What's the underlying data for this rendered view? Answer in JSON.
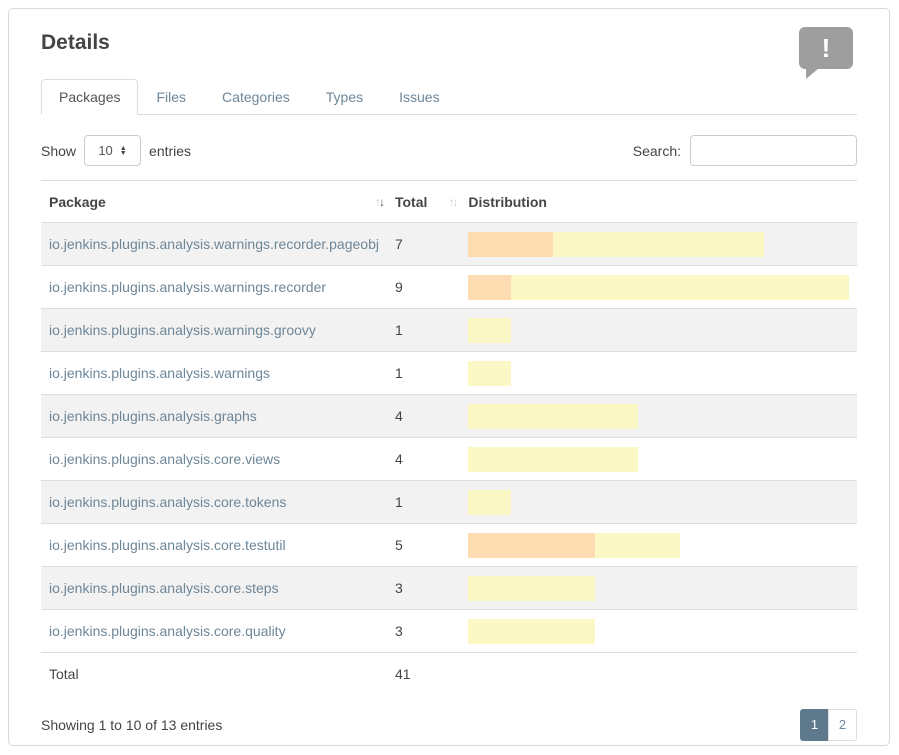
{
  "header": {
    "title": "Details",
    "icon": "speech-bubble-exclamation",
    "icon_glyph": "!"
  },
  "tabs": {
    "items": [
      {
        "label": "Packages",
        "active": true
      },
      {
        "label": "Files",
        "active": false
      },
      {
        "label": "Categories",
        "active": false
      },
      {
        "label": "Types",
        "active": false
      },
      {
        "label": "Issues",
        "active": false
      }
    ]
  },
  "controls": {
    "show_label": "Show",
    "length_value": "10",
    "entries_label": "entries",
    "search_label": "Search:",
    "search_value": ""
  },
  "table": {
    "columns": [
      {
        "label": "Package",
        "sortable": true,
        "sorted": true
      },
      {
        "label": "Total",
        "sortable": true,
        "sorted": false
      },
      {
        "label": "Distribution",
        "sortable": false,
        "sorted": false
      }
    ],
    "max_total": 9,
    "rows": [
      {
        "package": "io.jenkins.plugins.analysis.warnings.recorder.pageobj",
        "total": 7,
        "high": 2,
        "normal": 5
      },
      {
        "package": "io.jenkins.plugins.analysis.warnings.recorder",
        "total": 9,
        "high": 1,
        "normal": 8
      },
      {
        "package": "io.jenkins.plugins.analysis.warnings.groovy",
        "total": 1,
        "high": 0,
        "normal": 1
      },
      {
        "package": "io.jenkins.plugins.analysis.warnings",
        "total": 1,
        "high": 0,
        "normal": 1
      },
      {
        "package": "io.jenkins.plugins.analysis.graphs",
        "total": 4,
        "high": 0,
        "normal": 4
      },
      {
        "package": "io.jenkins.plugins.analysis.core.views",
        "total": 4,
        "high": 0,
        "normal": 4
      },
      {
        "package": "io.jenkins.plugins.analysis.core.tokens",
        "total": 1,
        "high": 0,
        "normal": 1
      },
      {
        "package": "io.jenkins.plugins.analysis.core.testutil",
        "total": 5,
        "high": 3,
        "normal": 2
      },
      {
        "package": "io.jenkins.plugins.analysis.core.steps",
        "total": 3,
        "high": 0,
        "normal": 3
      },
      {
        "package": "io.jenkins.plugins.analysis.core.quality",
        "total": 3,
        "high": 0,
        "normal": 3
      }
    ],
    "footer_row": {
      "label": "Total",
      "total": "41"
    }
  },
  "pagination": {
    "info": "Showing 1 to 10 of 13 entries",
    "pages": [
      {
        "label": "1",
        "active": true
      },
      {
        "label": "2",
        "active": false
      }
    ]
  },
  "colors": {
    "bar_high": "#fcdcb0",
    "bar_normal": "#fcf8c6",
    "active_page_bg": "#5e798b"
  }
}
